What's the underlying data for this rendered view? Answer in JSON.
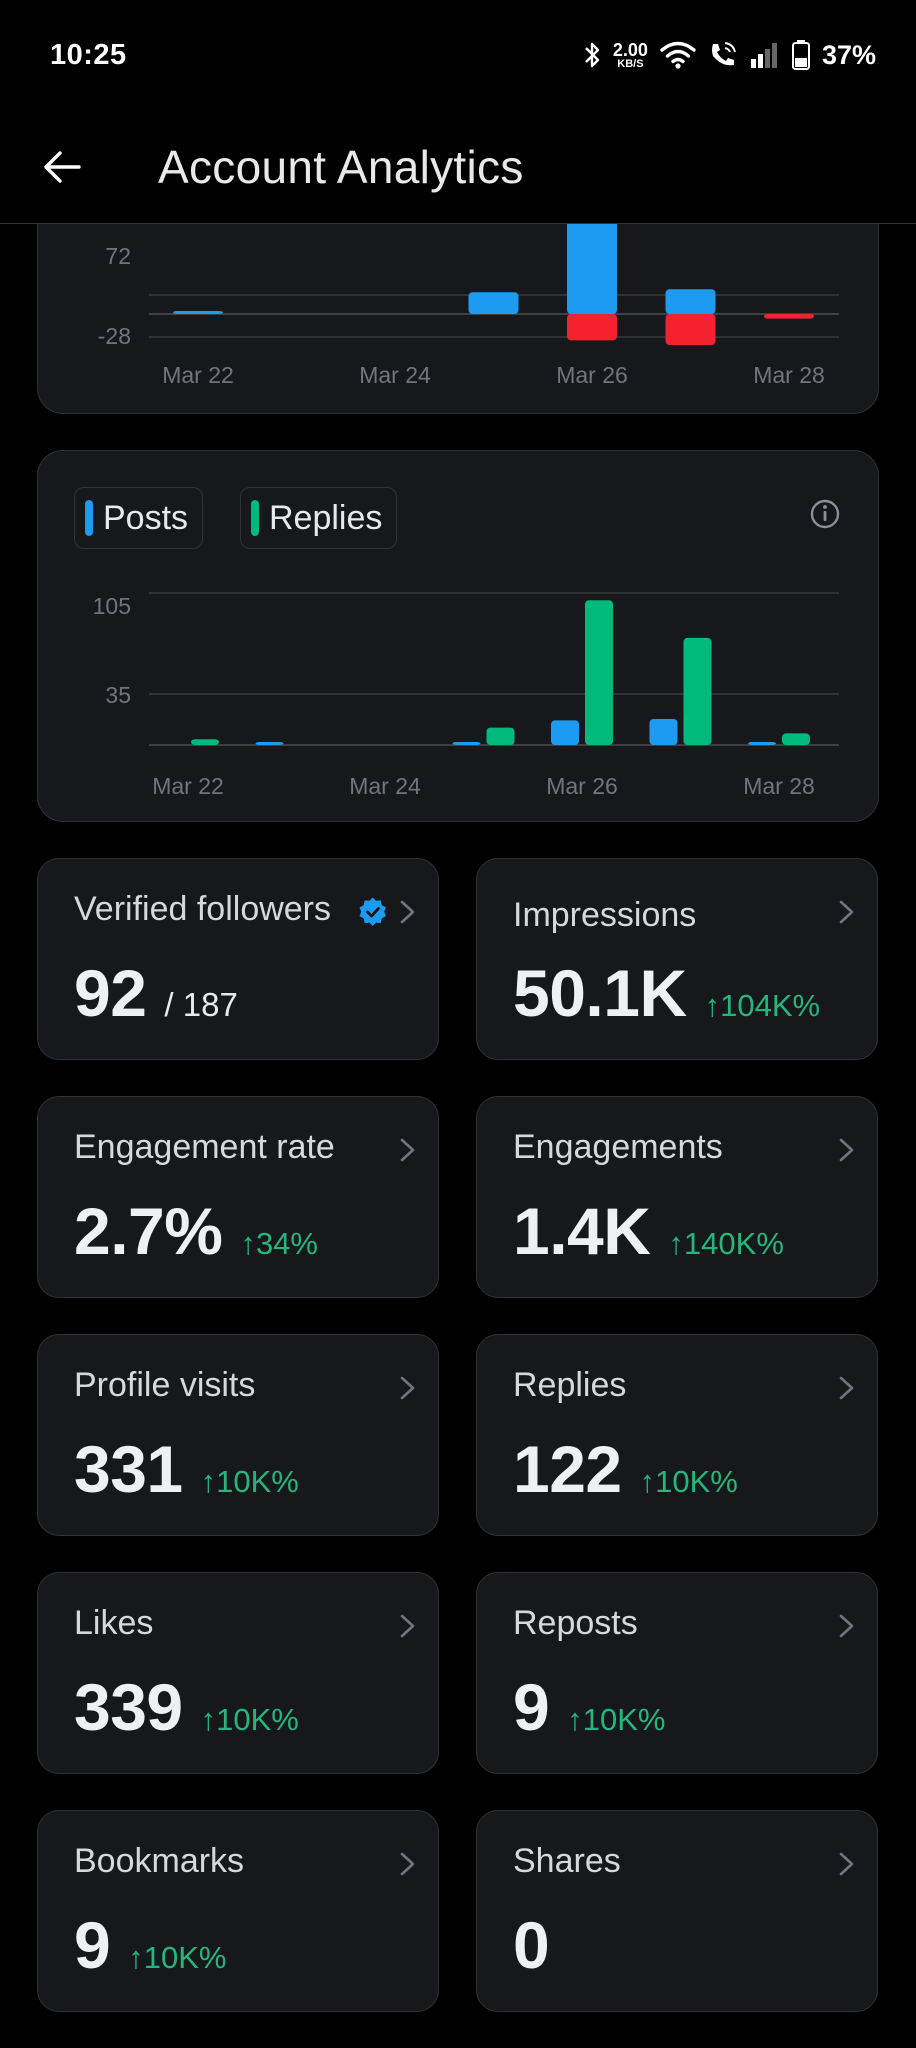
{
  "status_bar": {
    "time": "10:25",
    "net_speed_value": "2.00",
    "net_speed_unit": "KB/S",
    "battery": "37%",
    "icons": [
      "bluetooth-icon",
      "wifi-icon",
      "wifi-calling-icon",
      "signal-icon",
      "battery-icon"
    ]
  },
  "header": {
    "title": "Account Analytics",
    "back_icon": "arrow-left-icon"
  },
  "top_chart": {
    "y_ticks": [
      "72",
      "-28"
    ],
    "x_ticks": [
      "Mar 22",
      "Mar 24",
      "Mar 26",
      "Mar 28"
    ]
  },
  "mid_chart": {
    "legend": [
      "Posts",
      "Replies"
    ],
    "y_ticks": [
      "105",
      "35"
    ],
    "x_ticks": [
      "Mar 22",
      "Mar 24",
      "Mar 26",
      "Mar 28"
    ]
  },
  "chart_data": [
    {
      "type": "bar",
      "stacked": true,
      "categories": [
        "Mar 22",
        "Mar 23",
        "Mar 24",
        "Mar 25",
        "Mar 26",
        "Mar 27",
        "Mar 28"
      ],
      "series": [
        {
          "color": "#1d9bf0",
          "values": [
            1,
            0,
            0,
            14,
            86,
            16,
            0
          ]
        },
        {
          "color": "#f4212e",
          "values": [
            0,
            0,
            0,
            0,
            -17,
            -20,
            -3
          ]
        }
      ],
      "ylim": [
        -35,
        85
      ],
      "y_ticks": [
        72,
        -28
      ]
    },
    {
      "type": "bar",
      "categories": [
        "Mar 22",
        "Mar 23",
        "Mar 24",
        "Mar 25",
        "Mar 26",
        "Mar 27",
        "Mar 28"
      ],
      "series": [
        {
          "name": "Posts",
          "color": "#1d9bf0",
          "values": [
            0,
            1,
            0,
            2,
            17,
            18,
            1
          ]
        },
        {
          "name": "Replies",
          "color": "#00ba7c",
          "values": [
            4,
            0,
            0,
            12,
            100,
            74,
            8
          ]
        }
      ],
      "ylim": [
        0,
        115
      ],
      "y_ticks": [
        105,
        35
      ],
      "legend": "top-left",
      "grid": true
    }
  ],
  "stats": [
    {
      "label": "Verified followers",
      "value": "92",
      "total": "/ 187",
      "delta": ""
    },
    {
      "label": "Impressions",
      "value": "50.1K",
      "total": "",
      "delta": "↑104K%"
    },
    {
      "label": "Engagement rate",
      "value": "2.7%",
      "total": "",
      "delta": "↑34%"
    },
    {
      "label": "Engagements",
      "value": "1.4K",
      "total": "",
      "delta": "↑140K%"
    },
    {
      "label": "Profile visits",
      "value": "331",
      "total": "",
      "delta": "↑10K%"
    },
    {
      "label": "Replies",
      "value": "122",
      "total": "",
      "delta": "↑10K%"
    },
    {
      "label": "Likes",
      "value": "339",
      "total": "",
      "delta": "↑10K%"
    },
    {
      "label": "Reposts",
      "value": "9",
      "total": "",
      "delta": "↑10K%"
    },
    {
      "label": "Bookmarks",
      "value": "9",
      "total": "",
      "delta": "↑10K%"
    },
    {
      "label": "Shares",
      "value": "0",
      "total": "",
      "delta": ""
    }
  ],
  "colors": {
    "accent": "#1d9bf0",
    "positive": "#00ba7c",
    "negative": "#f4212e"
  }
}
